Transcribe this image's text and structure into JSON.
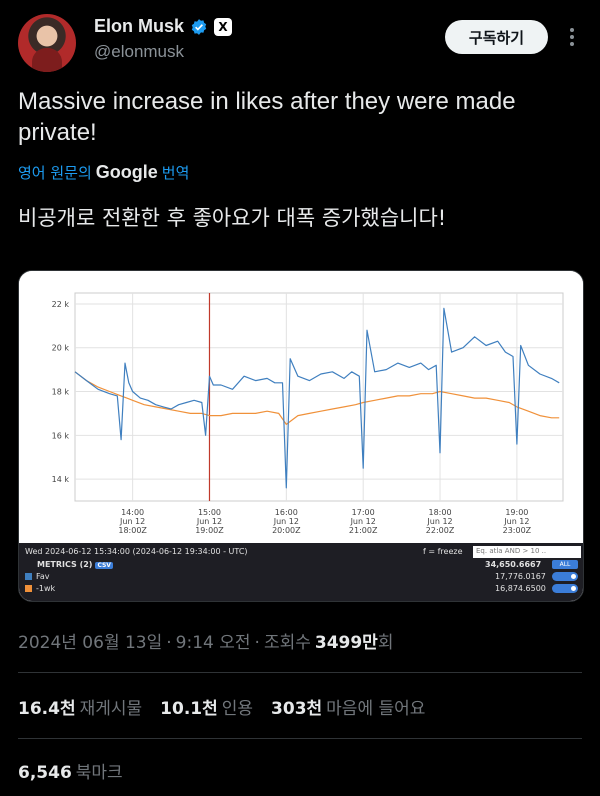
{
  "author": {
    "display_name": "Elon Musk",
    "handle": "@elonmusk",
    "badge_x": "X"
  },
  "subscribe_label": "구독하기",
  "tweet": {
    "text": "Massive increase in likes after they were made private!",
    "translate_prefix": "영어 원문의",
    "translate_google": "Google",
    "translate_suffix": "번역",
    "translated_text": "비공개로 전환한 후 좋아요가 대폭 증가했습니다!"
  },
  "chart_data": {
    "type": "line",
    "ylim": [
      13000,
      22500
    ],
    "yticks": [
      14000,
      16000,
      18000,
      20000,
      22000
    ],
    "ytick_labels": [
      "14 k",
      "16 k",
      "18 k",
      "20 k",
      "22 k"
    ],
    "xlim": [
      13.25,
      19.6
    ],
    "xticks": [
      {
        "x": 14,
        "l1": "14:00",
        "l2": "Jun 12",
        "l3": "18:00Z"
      },
      {
        "x": 15,
        "l1": "15:00",
        "l2": "Jun 12",
        "l3": "19:00Z"
      },
      {
        "x": 16,
        "l1": "16:00",
        "l2": "Jun 12",
        "l3": "20:00Z"
      },
      {
        "x": 17,
        "l1": "17:00",
        "l2": "Jun 12",
        "l3": "21:00Z"
      },
      {
        "x": 18,
        "l1": "18:00",
        "l2": "Jun 12",
        "l3": "22:00Z"
      },
      {
        "x": 19,
        "l1": "19:00",
        "l2": "Jun 12",
        "l3": "23:00Z"
      }
    ],
    "marker_x": 15.0,
    "marker_color": "#c0392b",
    "series": [
      {
        "name": "Fav",
        "color": "#3f7fbf",
        "x": [
          13.25,
          13.4,
          13.55,
          13.7,
          13.8,
          13.85,
          13.9,
          13.95,
          14.0,
          14.1,
          14.2,
          14.3,
          14.4,
          14.5,
          14.6,
          14.7,
          14.8,
          14.9,
          14.95,
          15.0,
          15.05,
          15.15,
          15.3,
          15.45,
          15.6,
          15.75,
          15.85,
          15.95,
          16.0,
          16.05,
          16.15,
          16.3,
          16.45,
          16.6,
          16.75,
          16.85,
          16.95,
          17.0,
          17.05,
          17.15,
          17.3,
          17.45,
          17.6,
          17.75,
          17.85,
          17.95,
          18.0,
          18.05,
          18.15,
          18.3,
          18.45,
          18.6,
          18.75,
          18.85,
          18.95,
          19.0,
          19.05,
          19.15,
          19.3,
          19.45,
          19.55
        ],
        "values": [
          18900,
          18500,
          18100,
          17900,
          17800,
          15800,
          19300,
          18400,
          18000,
          17700,
          17600,
          17400,
          17300,
          17200,
          17400,
          17500,
          17600,
          17500,
          16000,
          18700,
          18300,
          18300,
          18100,
          18700,
          18500,
          18600,
          18400,
          18400,
          13600,
          19500,
          18700,
          18500,
          18800,
          18900,
          18600,
          18900,
          18700,
          14500,
          20800,
          18900,
          19000,
          19300,
          19100,
          19300,
          19000,
          19200,
          15200,
          21800,
          19800,
          20000,
          20500,
          20100,
          20300,
          19800,
          19600,
          15600,
          20100,
          19200,
          18800,
          18600,
          18400
        ]
      },
      {
        "name": "-1wk",
        "color": "#f0913a",
        "x": [
          13.25,
          13.4,
          13.55,
          13.7,
          13.85,
          14.0,
          14.15,
          14.3,
          14.45,
          14.6,
          14.75,
          14.9,
          15.0,
          15.15,
          15.3,
          15.45,
          15.6,
          15.75,
          15.9,
          16.0,
          16.15,
          16.3,
          16.45,
          16.6,
          16.75,
          16.9,
          17.0,
          17.15,
          17.3,
          17.45,
          17.6,
          17.75,
          17.9,
          18.0,
          18.15,
          18.3,
          18.45,
          18.6,
          18.75,
          18.9,
          19.0,
          19.15,
          19.3,
          19.45,
          19.55
        ],
        "values": [
          18900,
          18500,
          18200,
          18000,
          17800,
          17600,
          17400,
          17300,
          17200,
          17100,
          17000,
          17000,
          16900,
          16900,
          17000,
          17000,
          17000,
          17100,
          17000,
          16500,
          16900,
          17000,
          17100,
          17200,
          17300,
          17400,
          17500,
          17600,
          17700,
          17800,
          17800,
          17900,
          17900,
          18000,
          17900,
          17800,
          17700,
          17700,
          17600,
          17500,
          17300,
          17100,
          16900,
          16800,
          16800
        ]
      }
    ]
  },
  "metrics_panel": {
    "timestamp": "Wed 2024-06-12 15:34:00 (2024-06-12 19:34:00 - UTC)",
    "freeze_label": "f = freeze",
    "search_placeholder": "Eq. atla AND > 10 ..",
    "metrics_label": "METRICS (2)",
    "csv_label": "CSV",
    "total_value": "34,650.6667",
    "all_label": "ALL",
    "rows": [
      {
        "name": "Fav",
        "value": "17,776.0167",
        "color": "#3f7fbf"
      },
      {
        "name": "-1wk",
        "value": "16,874.6500",
        "color": "#f0913a"
      }
    ]
  },
  "post_meta": {
    "date": "2024년 06월 13일",
    "sep1": "·",
    "time": "9:14 오전",
    "sep2": "·",
    "views_label": "조회수",
    "views_value": "3499만",
    "views_suffix": "회"
  },
  "stats": {
    "reposts_value": "16.4천",
    "reposts_label": "재게시물",
    "quotes_value": "10.1천",
    "quotes_label": "인용",
    "likes_value": "303천",
    "likes_label": "마음에 들어요"
  },
  "bookmarks": {
    "value": "6,546",
    "label": "북마크"
  }
}
